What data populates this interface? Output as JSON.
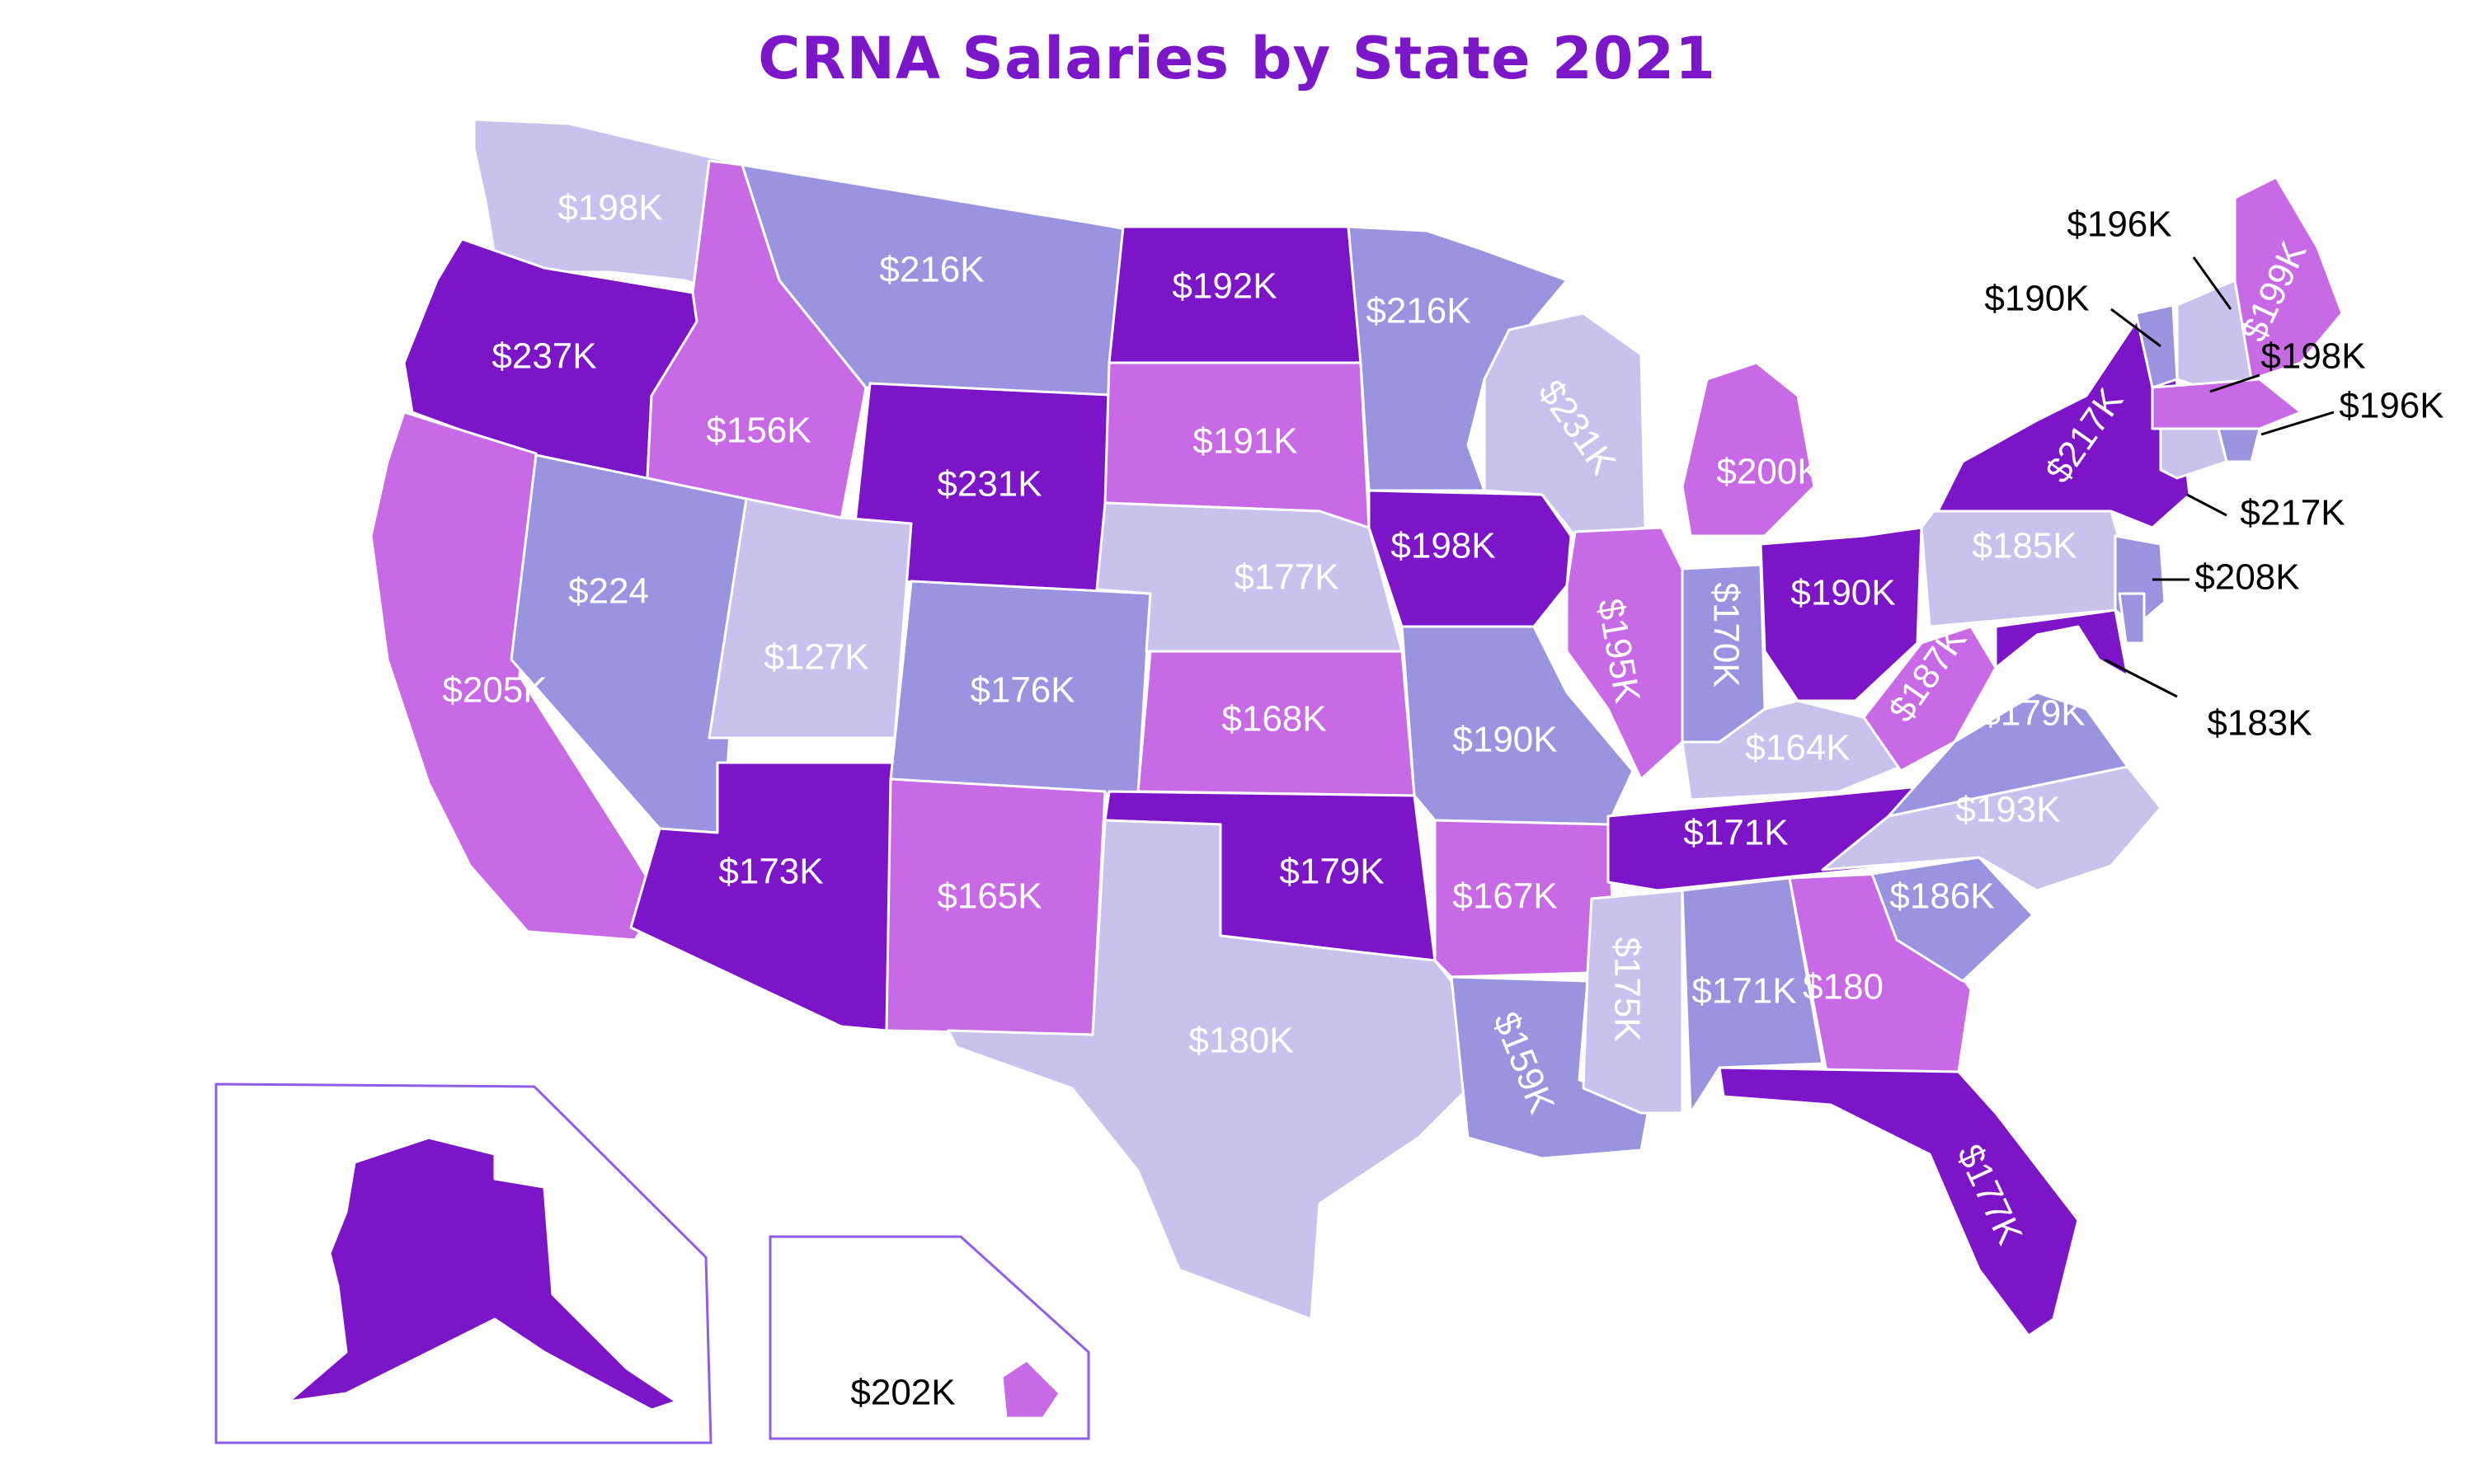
{
  "title": "CRNA Salaries by State 2021",
  "legend_colors": {
    "lightest": "#c9c2ec",
    "light": "#9a93df",
    "medium": "#c86ae6",
    "dark": "#7c14c8"
  },
  "states": [
    {
      "id": "WA",
      "label": "$198K",
      "shade": "lightest"
    },
    {
      "id": "OR",
      "label": "$237K",
      "shade": "dark"
    },
    {
      "id": "CA",
      "label": "$205K",
      "shade": "medium"
    },
    {
      "id": "NV",
      "label": "$224",
      "shade": "light"
    },
    {
      "id": "ID",
      "label": "$156K",
      "shade": "medium"
    },
    {
      "id": "MT",
      "label": "$216K",
      "shade": "light"
    },
    {
      "id": "WY",
      "label": "$231K",
      "shade": "dark"
    },
    {
      "id": "UT",
      "label": "$127K",
      "shade": "lightest"
    },
    {
      "id": "AZ",
      "label": "$173K",
      "shade": "dark"
    },
    {
      "id": "CO",
      "label": "$176K",
      "shade": "light"
    },
    {
      "id": "NM",
      "label": "$165K",
      "shade": "medium"
    },
    {
      "id": "ND",
      "label": "$192K",
      "shade": "dark"
    },
    {
      "id": "SD",
      "label": "$191K",
      "shade": "medium"
    },
    {
      "id": "NE",
      "label": "$177K",
      "shade": "lightest"
    },
    {
      "id": "KS",
      "label": "$168K",
      "shade": "medium"
    },
    {
      "id": "OK",
      "label": "$179K",
      "shade": "dark"
    },
    {
      "id": "TX",
      "label": "$180K",
      "shade": "lightest"
    },
    {
      "id": "MN",
      "label": "$216K",
      "shade": "light"
    },
    {
      "id": "IA",
      "label": "$198K",
      "shade": "dark"
    },
    {
      "id": "MO",
      "label": "$190K",
      "shade": "light"
    },
    {
      "id": "AR",
      "label": "$167K",
      "shade": "medium"
    },
    {
      "id": "LA",
      "label": "$159K",
      "shade": "light"
    },
    {
      "id": "WI",
      "label": "$231K",
      "shade": "lightest"
    },
    {
      "id": "IL",
      "label": "$195K",
      "shade": "medium"
    },
    {
      "id": "MI",
      "label": "$200K",
      "shade": "medium"
    },
    {
      "id": "IN",
      "label": "$170K",
      "shade": "light"
    },
    {
      "id": "OH",
      "label": "$190K",
      "shade": "dark"
    },
    {
      "id": "KY",
      "label": "$164K",
      "shade": "lightest"
    },
    {
      "id": "TN",
      "label": "$171K",
      "shade": "dark"
    },
    {
      "id": "MS",
      "label": "$175K",
      "shade": "lightest"
    },
    {
      "id": "AL",
      "label": "$171K",
      "shade": "light"
    },
    {
      "id": "GA",
      "label": "$180",
      "shade": "medium"
    },
    {
      "id": "FL",
      "label": "$177K",
      "shade": "dark"
    },
    {
      "id": "SC",
      "label": "$186K",
      "shade": "light"
    },
    {
      "id": "NC",
      "label": "$193K",
      "shade": "lightest"
    },
    {
      "id": "VA",
      "label": "$179K",
      "shade": "light"
    },
    {
      "id": "WV",
      "label": "$187K",
      "shade": "medium"
    },
    {
      "id": "PA",
      "label": "$185K",
      "shade": "lightest"
    },
    {
      "id": "NY",
      "label": "$217K",
      "shade": "dark"
    },
    {
      "id": "ME",
      "label": "$199K",
      "shade": "medium"
    },
    {
      "id": "VT",
      "label": "$190K",
      "shade": "light"
    },
    {
      "id": "NH",
      "label": "$196K",
      "shade": "lightest"
    },
    {
      "id": "MA",
      "label": "$198K",
      "shade": "medium"
    },
    {
      "id": "RI",
      "label": "$196K",
      "shade": "light"
    },
    {
      "id": "CT",
      "label": "$217K",
      "shade": "lightest"
    },
    {
      "id": "NJ",
      "label": "$208K",
      "shade": "light"
    },
    {
      "id": "MD",
      "label": "$183K",
      "shade": "dark"
    },
    {
      "id": "DE",
      "label": "",
      "shade": "light"
    },
    {
      "id": "AK",
      "label": "",
      "shade": "dark"
    },
    {
      "id": "HI",
      "label": "$202K",
      "shade": "medium"
    }
  ]
}
